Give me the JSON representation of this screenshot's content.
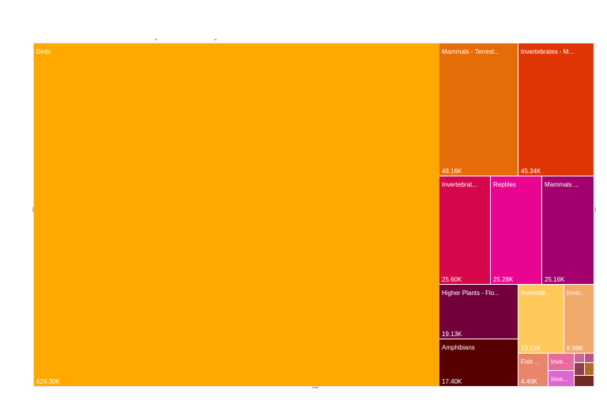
{
  "chart_data": {
    "type": "treemap",
    "title": "",
    "tiles": [
      {
        "label": "Birds",
        "value_label": "624.30K",
        "value": 624300,
        "color": "#FFA800"
      },
      {
        "label": "Mammals - Terrest...",
        "value_label": "48.16K",
        "value": 48160,
        "color": "#E66C07"
      },
      {
        "label": "Invertebrates - M...",
        "value_label": "45.34K",
        "value": 45340,
        "color": "#E03504"
      },
      {
        "label": "Invertebrat...",
        "value_label": "25.60K",
        "value": 25600,
        "color": "#D6074A"
      },
      {
        "label": "Reptiles",
        "value_label": "25.28K",
        "value": 25280,
        "color": "#E9058F"
      },
      {
        "label": "Mammals ...",
        "value_label": "25.16K",
        "value": 25160,
        "color": "#A3006D"
      },
      {
        "label": "Higher Plants - Flo...",
        "value_label": "19.13K",
        "value": 19130,
        "color": "#73003A"
      },
      {
        "label": "Amphibians",
        "value_label": "17.40K",
        "value": 17400,
        "color": "#560000"
      },
      {
        "label": "Invertebr...",
        "value_label": "13.51K",
        "value": 13510,
        "color": "#FFC85A"
      },
      {
        "label": "Inver...",
        "value_label": "8.99K",
        "value": 8990,
        "color": "#EFA96A"
      },
      {
        "label": "Fish ...",
        "value_label": "4.40K",
        "value": 4400,
        "color": "#E8856A"
      },
      {
        "label": "Inve...",
        "value_label": "",
        "value": null,
        "color": "#E86A9E"
      },
      {
        "label": "Inve...",
        "value_label": "",
        "value": null,
        "color": "#DF67D0"
      },
      {
        "label": "",
        "value_label": "",
        "value": null,
        "color": "#C76A93"
      },
      {
        "label": "",
        "value_label": "",
        "value": null,
        "color": "#B5597E"
      },
      {
        "label": "",
        "value_label": "",
        "value": null,
        "color": "#8E3E53"
      },
      {
        "label": "",
        "value_label": "",
        "value": null,
        "color": "#B06A2E"
      },
      {
        "label": "",
        "value_label": "",
        "value": null,
        "color": "#6E2A25"
      }
    ]
  }
}
